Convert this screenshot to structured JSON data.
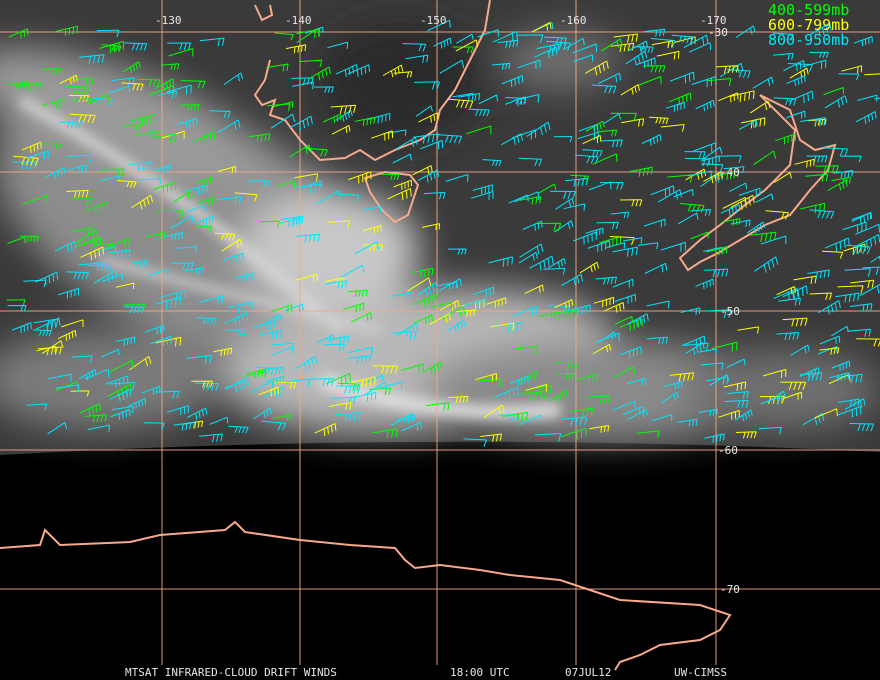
{
  "map": {
    "longitude_labels": [
      "-130",
      "-140",
      "-150",
      "-160",
      "-170"
    ],
    "latitude_labels": [
      "-30",
      "-40",
      "-50",
      "-60",
      "-70"
    ],
    "legend": [
      {
        "label": "400-599mb",
        "color": "#00ff00"
      },
      {
        "label": "600-799mb",
        "color": "#ffff00"
      },
      {
        "label": "800-950mb",
        "color": "#00e5ff"
      }
    ],
    "footer": {
      "product": "MTSAT INFRARED-CLOUD DRIFT WINDS",
      "time": "18:00 UTC",
      "date": "07JUL12",
      "source": "UW-CIMSS"
    }
  }
}
